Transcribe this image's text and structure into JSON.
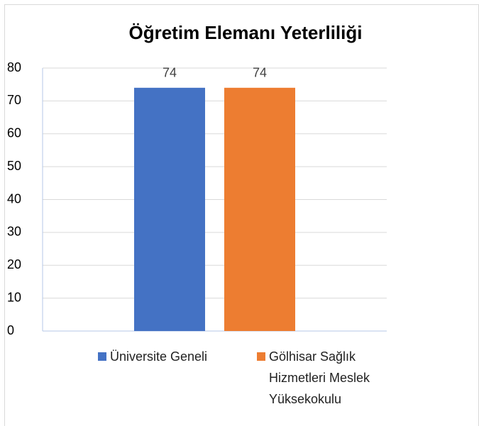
{
  "chart_data": {
    "type": "bar",
    "title": "Öğretim Elemanı Yeterliliği",
    "categories": [
      null
    ],
    "series": [
      {
        "name": "Üniversite Geneli",
        "color": "#4472c4",
        "values": [
          74
        ]
      },
      {
        "name": "Gölhisar Sağlık Hizmetleri Meslek Yüksekokulu",
        "color": "#ed7d31",
        "values": [
          74
        ]
      }
    ],
    "ylim": [
      0,
      80
    ],
    "yticks": [
      0,
      10,
      20,
      30,
      40,
      50,
      60,
      70,
      80
    ],
    "grid": true,
    "legend": "bottom"
  }
}
